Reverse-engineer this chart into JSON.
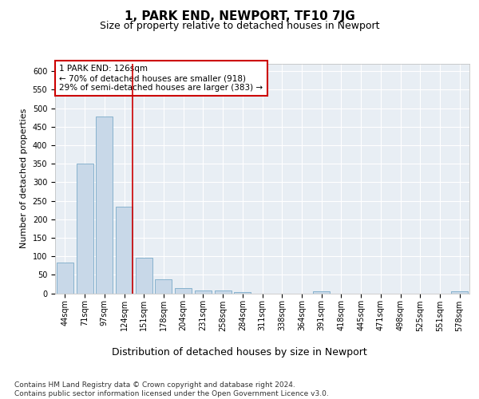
{
  "title": "1, PARK END, NEWPORT, TF10 7JG",
  "subtitle": "Size of property relative to detached houses in Newport",
  "xlabel": "Distribution of detached houses by size in Newport",
  "ylabel": "Number of detached properties",
  "categories": [
    "44sqm",
    "71sqm",
    "97sqm",
    "124sqm",
    "151sqm",
    "178sqm",
    "204sqm",
    "231sqm",
    "258sqm",
    "284sqm",
    "311sqm",
    "338sqm",
    "364sqm",
    "391sqm",
    "418sqm",
    "445sqm",
    "471sqm",
    "498sqm",
    "525sqm",
    "551sqm",
    "578sqm"
  ],
  "values": [
    83,
    350,
    478,
    233,
    96,
    38,
    15,
    8,
    8,
    3,
    0,
    0,
    0,
    5,
    0,
    0,
    0,
    0,
    0,
    0,
    5
  ],
  "bar_color": "#c8d8e8",
  "bar_edge_color": "#7aaac8",
  "marker_index": 3,
  "marker_color": "#cc0000",
  "annotation_text": "1 PARK END: 126sqm\n← 70% of detached houses are smaller (918)\n29% of semi-detached houses are larger (383) →",
  "annotation_box_color": "#ffffff",
  "annotation_box_edge": "#cc0000",
  "footer": "Contains HM Land Registry data © Crown copyright and database right 2024.\nContains public sector information licensed under the Open Government Licence v3.0.",
  "ylim": [
    0,
    620
  ],
  "yticks": [
    0,
    50,
    100,
    150,
    200,
    250,
    300,
    350,
    400,
    450,
    500,
    550,
    600
  ],
  "bg_color": "#e8eef4",
  "fig_bg_color": "#ffffff",
  "title_fontsize": 11,
  "subtitle_fontsize": 9,
  "xlabel_fontsize": 9,
  "ylabel_fontsize": 8,
  "tick_fontsize": 7,
  "annotation_fontsize": 7.5,
  "footer_fontsize": 6.5
}
